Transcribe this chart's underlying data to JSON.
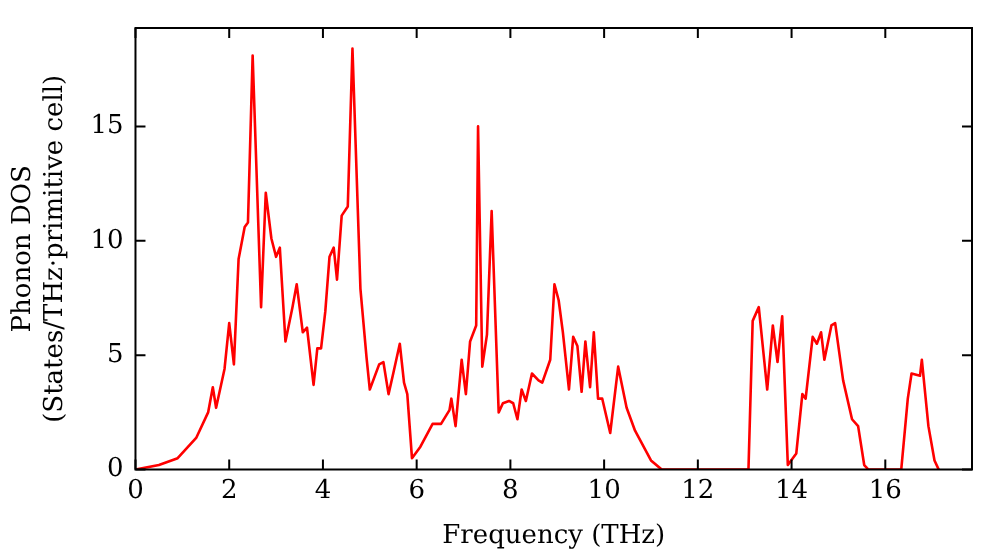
{
  "chart_data": {
    "type": "line",
    "xlabel": "Frequency (THz)",
    "ylabel": "Phonon DOS\n(States/THz·primitive cell)",
    "xlim": [
      0,
      17.85
    ],
    "ylim": [
      0,
      19.3
    ],
    "xticks": [
      0,
      2,
      4,
      6,
      8,
      10,
      12,
      14,
      16
    ],
    "yticks": [
      0,
      5,
      10,
      15
    ],
    "grid": false,
    "legend": false,
    "marker": "none",
    "line_style": "solid",
    "series": [
      {
        "color": "#ff0000",
        "x": [
          0,
          0.5,
          0.9,
          1.3,
          1.55,
          1.65,
          1.72,
          1.9,
          2.0,
          2.1,
          2.2,
          2.33,
          2.4,
          2.5,
          2.68,
          2.78,
          2.9,
          3.0,
          3.08,
          3.2,
          3.35,
          3.44,
          3.57,
          3.66,
          3.8,
          3.88,
          3.96,
          4.05,
          4.14,
          4.23,
          4.3,
          4.4,
          4.53,
          4.63,
          4.8,
          4.93,
          5.0,
          5.2,
          5.29,
          5.4,
          5.5,
          5.64,
          5.73,
          5.8,
          5.9,
          6.08,
          6.34,
          6.52,
          6.7,
          6.74,
          6.83,
          6.96,
          7.05,
          7.14,
          7.27,
          7.31,
          7.4,
          7.5,
          7.6,
          7.75,
          7.84,
          7.97,
          8.06,
          8.15,
          8.24,
          8.33,
          8.46,
          8.6,
          8.68,
          8.85,
          8.94,
          9.03,
          9.12,
          9.25,
          9.34,
          9.43,
          9.52,
          9.6,
          9.7,
          9.78,
          9.87,
          9.96,
          10.13,
          10.3,
          10.48,
          10.66,
          11.0,
          11.23,
          13.08,
          13.17,
          13.3,
          13.48,
          13.6,
          13.7,
          13.8,
          13.92,
          14.1,
          14.23,
          14.3,
          14.45,
          14.54,
          14.63,
          14.7,
          14.85,
          14.93,
          15.1,
          15.29,
          15.42,
          15.55,
          15.64,
          16.34,
          16.48,
          16.56,
          16.74,
          16.78,
          16.92,
          17.05,
          17.14
        ],
        "values": [
          0,
          0.2,
          0.5,
          1.4,
          2.5,
          3.6,
          2.7,
          4.4,
          6.4,
          4.6,
          9.2,
          10.6,
          10.8,
          18.1,
          7.1,
          12.1,
          10.1,
          9.3,
          9.7,
          5.6,
          7.1,
          8.1,
          6.0,
          6.2,
          3.7,
          5.3,
          5.3,
          6.9,
          9.3,
          9.7,
          8.3,
          11.1,
          11.5,
          18.4,
          7.9,
          4.9,
          3.5,
          4.6,
          4.7,
          3.3,
          4.2,
          5.5,
          3.8,
          3.3,
          0.5,
          1.0,
          2.0,
          2.0,
          2.6,
          3.1,
          1.9,
          4.8,
          3.3,
          5.6,
          6.3,
          15.0,
          4.5,
          5.9,
          11.3,
          2.5,
          2.9,
          3.0,
          2.9,
          2.2,
          3.5,
          3.0,
          4.2,
          3.9,
          3.8,
          4.8,
          8.1,
          7.4,
          6.0,
          3.5,
          5.8,
          5.4,
          3.4,
          5.6,
          3.6,
          6.0,
          3.1,
          3.1,
          1.6,
          4.5,
          2.7,
          1.7,
          0.4,
          0,
          0,
          6.5,
          7.1,
          3.5,
          6.3,
          4.7,
          6.7,
          0.2,
          0.7,
          3.3,
          3.1,
          5.8,
          5.5,
          6.0,
          4.8,
          6.3,
          6.4,
          3.9,
          2.2,
          1.9,
          0.2,
          0,
          0,
          3.1,
          4.2,
          4.1,
          4.8,
          1.9,
          0.4,
          0
        ]
      }
    ]
  }
}
